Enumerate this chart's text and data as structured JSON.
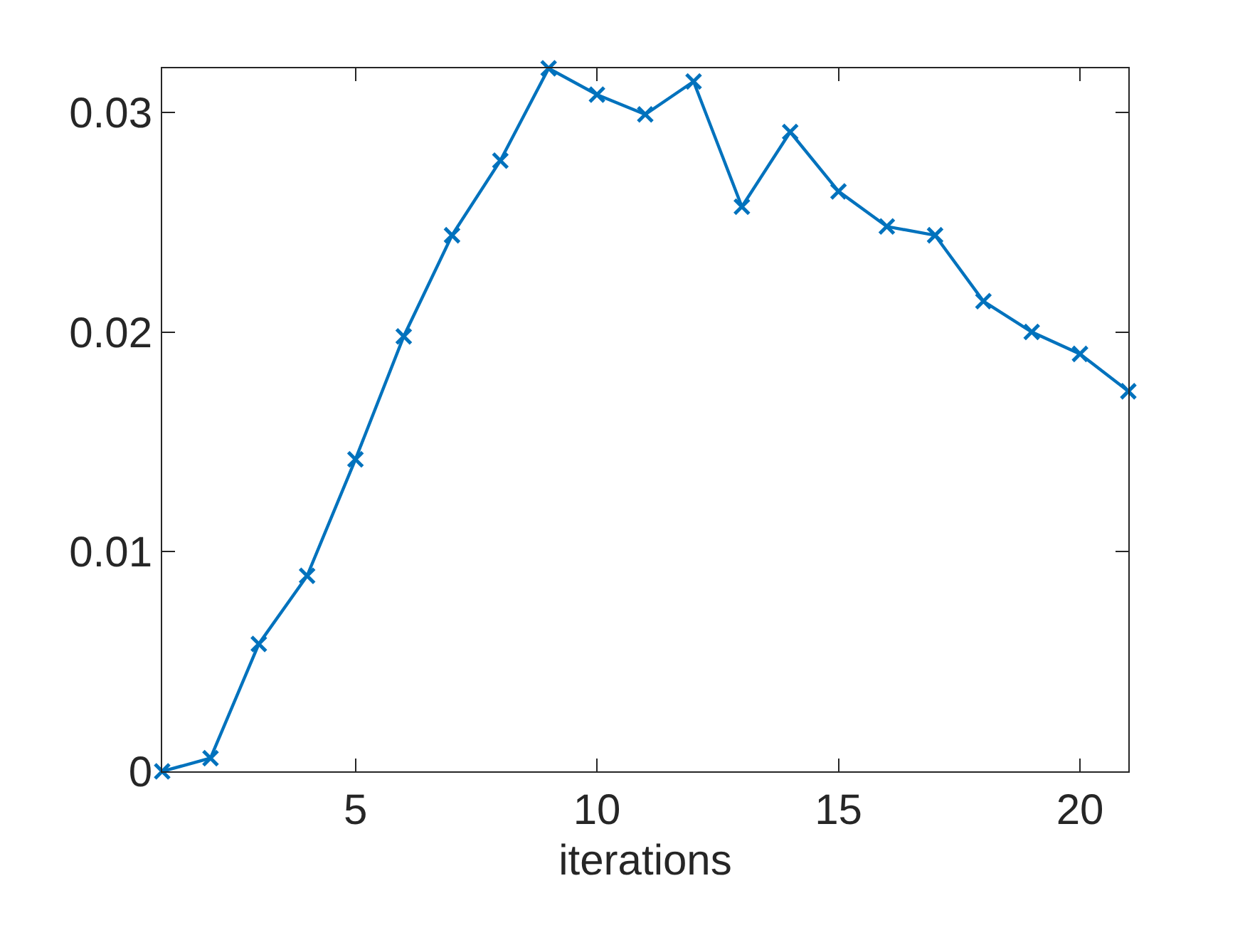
{
  "chart_data": {
    "type": "line",
    "xlabel": "iterations",
    "x": [
      1,
      2,
      3,
      4,
      5,
      6,
      7,
      8,
      9,
      10,
      11,
      12,
      13,
      14,
      15,
      16,
      17,
      18,
      19,
      20,
      21
    ],
    "series": [
      {
        "color": "#0072bd",
        "values": [
          0.0,
          0.0006,
          0.0058,
          0.0089,
          0.0142,
          0.0198,
          0.0244,
          0.0278,
          0.032,
          0.0308,
          0.0299,
          0.0314,
          0.0257,
          0.0291,
          0.0264,
          0.0248,
          0.0244,
          0.0214,
          0.02,
          0.019,
          0.0173
        ]
      }
    ],
    "xlim": [
      1,
      21
    ],
    "xticks": [
      5,
      10,
      15,
      20
    ],
    "ylim": [
      0,
      0.032
    ],
    "yticks": [
      0,
      0.01,
      0.02,
      0.03
    ],
    "marker": "cross",
    "line_style": "solid"
  }
}
